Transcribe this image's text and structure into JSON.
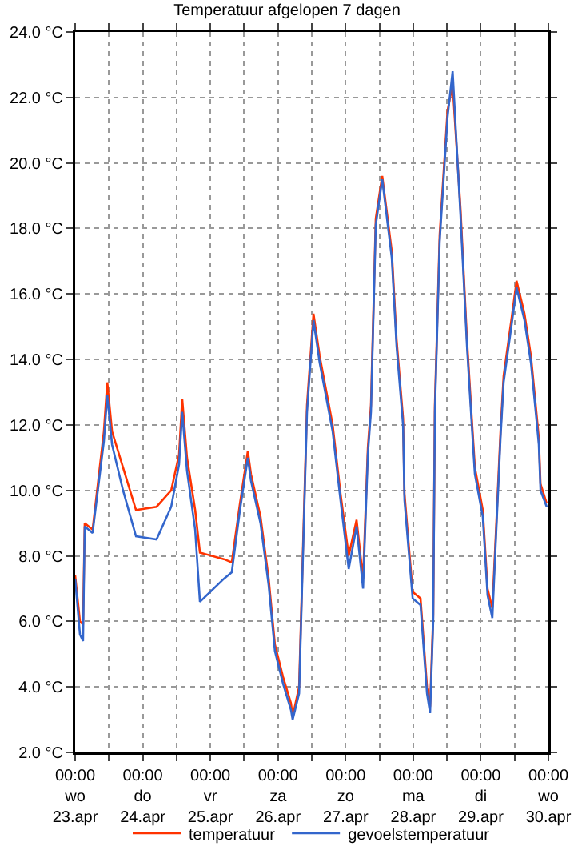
{
  "chart_data": {
    "type": "line",
    "title": "Temperatuur afgelopen 7 dagen",
    "x": [
      "--04-23T00:00",
      "--04-23T01:42",
      "--04-23T02:48",
      "--04-23T03:24",
      "--04-23T06:12",
      "--04-23T10:12",
      "--04-23T11:24",
      "--04-23T13:06",
      "--04-23T17:00",
      "--04-23T21:36",
      "--04-24T04:54",
      "--04-24T10:06",
      "--04-24T12:54",
      "--04-24T14:00",
      "--04-24T15:42",
      "--04-24T18:36",
      "--04-24T20:18",
      "--04-25T04:48",
      "--04-25T07:36",
      "--04-25T10:30",
      "--04-25T13:18",
      "--04-25T14:24",
      "--04-25T17:48",
      "--04-25T20:42",
      "--04-25T22:54",
      "--04-26T01:48",
      "--04-26T04:36",
      "--04-26T05:12",
      "--04-26T07:30",
      "--04-26T10:18",
      "--04-26T12:36",
      "--04-26T14:48",
      "--04-26T19:24",
      "--04-26T22:12",
      "--04-27T01:06",
      "--04-27T03:54",
      "--04-27T06:12",
      "--04-27T07:54",
      "--04-27T09:00",
      "--04-27T10:42",
      "--04-27T13:00",
      "--04-27T16:24",
      "--04-27T18:06",
      "--04-27T20:24",
      "--04-27T20:54",
      "--04-27T23:48",
      "--04-28T02:36",
      "--04-28T04:54",
      "--04-28T06:00",
      "--04-28T07:06",
      "--04-28T07:42",
      "--04-28T09:24",
      "--04-28T12:12",
      "--04-28T14:00",
      "--04-28T16:48",
      "--04-28T19:06",
      "--04-28T20:48",
      "--04-28T21:54",
      "--04-29T00:42",
      "--04-29T02:24",
      "--04-29T04:06",
      "--04-29T05:18",
      "--04-29T07:00",
      "--04-29T08:06",
      "--04-29T11:00",
      "--04-29T12:42",
      "--04-29T15:30",
      "--04-29T17:48",
      "--04-29T19:30",
      "--04-29T20:36",
      "--04-29T21:12",
      "--04-29T23:24"
    ],
    "series": [
      {
        "name": "temperatuur",
        "color": "#ff3300",
        "values": [
          7.4,
          6.0,
          5.9,
          9.0,
          8.8,
          11.8,
          13.3,
          11.8,
          10.7,
          9.4,
          9.5,
          10.0,
          11.1,
          12.8,
          11.0,
          9.4,
          8.1,
          7.9,
          7.8,
          9.6,
          11.2,
          10.5,
          9.2,
          7.3,
          5.3,
          4.3,
          3.5,
          3.1,
          4.0,
          12.6,
          15.4,
          14.1,
          12.0,
          9.9,
          8.0,
          9.1,
          7.3,
          11.3,
          12.6,
          18.3,
          19.6,
          17.3,
          14.6,
          12.2,
          9.9,
          6.9,
          6.7,
          4.0,
          3.4,
          6.2,
          12.6,
          17.8,
          21.6,
          22.4,
          18.6,
          14.6,
          12.2,
          10.7,
          9.4,
          7.0,
          6.4,
          8.6,
          11.8,
          13.5,
          15.3,
          16.4,
          15.4,
          14.1,
          12.6,
          11.6,
          10.2,
          9.6
        ]
      },
      {
        "name": "gevoelstemperatuur",
        "color": "#3366cc",
        "values": [
          7.3,
          5.6,
          5.4,
          8.9,
          8.7,
          11.5,
          12.9,
          11.4,
          10.0,
          8.6,
          8.5,
          9.5,
          10.8,
          12.4,
          10.6,
          8.8,
          6.6,
          7.3,
          7.5,
          9.4,
          11.0,
          10.3,
          9.0,
          7.1,
          5.1,
          4.1,
          3.3,
          3.0,
          3.8,
          12.4,
          15.2,
          13.9,
          11.8,
          9.7,
          7.6,
          8.9,
          7.0,
          11.1,
          12.4,
          18.1,
          19.5,
          17.1,
          14.4,
          12.0,
          9.7,
          6.7,
          6.5,
          3.8,
          3.2,
          6.0,
          12.4,
          17.6,
          21.4,
          22.8,
          18.4,
          14.4,
          12.0,
          10.5,
          9.2,
          6.8,
          6.1,
          8.4,
          11.6,
          13.3,
          15.1,
          16.2,
          15.2,
          13.9,
          12.4,
          11.4,
          10.0,
          9.5
        ]
      }
    ],
    "xlim": [
      "--04-23T00:00",
      "--04-30T00:00"
    ],
    "xticks": [
      {
        "value": "--04-23T00:00",
        "label": "00:00\nwo\n23.apr"
      },
      {
        "value": "--04-23T12:00",
        "label": null
      },
      {
        "value": "--04-24T00:00",
        "label": "00:00\ndo\n24.apr"
      },
      {
        "value": "--04-24T12:00",
        "label": null
      },
      {
        "value": "--04-25T00:00",
        "label": "00:00\nvr\n25.apr"
      },
      {
        "value": "--04-25T12:00",
        "label": null
      },
      {
        "value": "--04-26T00:00",
        "label": "00:00\nza\n26.apr"
      },
      {
        "value": "--04-26T12:00",
        "label": null
      },
      {
        "value": "--04-27T00:00",
        "label": "00:00\nzo\n27.apr"
      },
      {
        "value": "--04-27T12:00",
        "label": null
      },
      {
        "value": "--04-28T00:00",
        "label": "00:00\nma\n28.apr"
      },
      {
        "value": "--04-28T12:00",
        "label": null
      },
      {
        "value": "--04-29T00:00",
        "label": "00:00\ndi\n29.apr"
      },
      {
        "value": "--04-29T12:00",
        "label": null
      },
      {
        "value": "--04-30T00:00",
        "label": "00:00\nwo\n30.apr"
      }
    ],
    "ylim": [
      2,
      24
    ],
    "yticks": [
      {
        "value": 2,
        "label": "2.0 °C"
      },
      {
        "value": 4,
        "label": "4.0 °C"
      },
      {
        "value": 6,
        "label": "6.0 °C"
      },
      {
        "value": 8,
        "label": "8.0 °C"
      },
      {
        "value": 10,
        "label": "10.0 °C"
      },
      {
        "value": 12,
        "label": "12.0 °C"
      },
      {
        "value": 14,
        "label": "14.0 °C"
      },
      {
        "value": 16,
        "label": "16.0 °C"
      },
      {
        "value": 18,
        "label": "18.0 °C"
      },
      {
        "value": 20,
        "label": "20.0 °C"
      },
      {
        "value": 22,
        "label": "22.0 °C"
      },
      {
        "value": 24,
        "label": "24.0 °C"
      }
    ],
    "grid": true,
    "legend": "bottom",
    "marker": "none",
    "line_style": "solid"
  }
}
